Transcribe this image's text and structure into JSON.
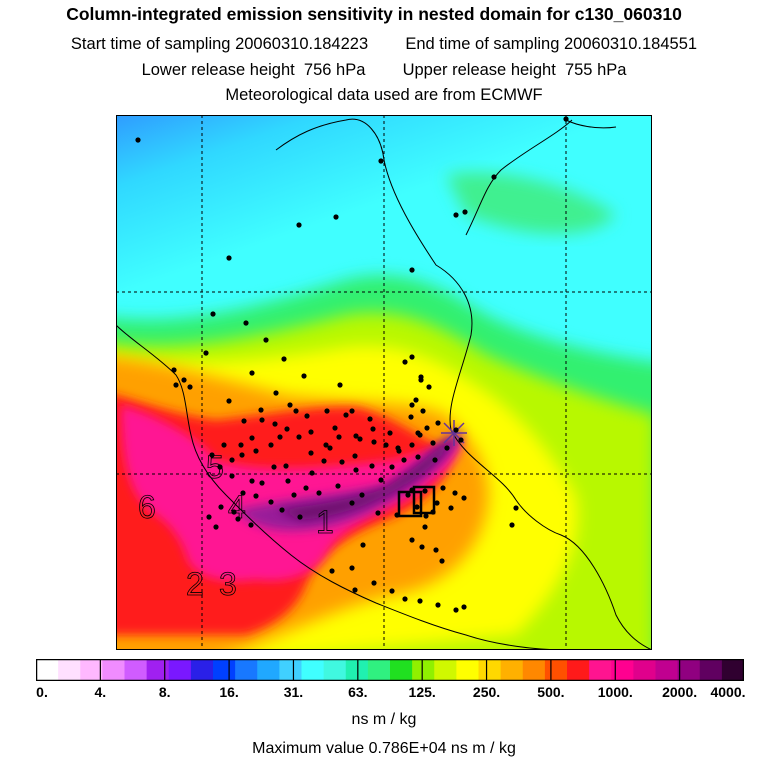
{
  "title": "Column-integrated emission sensitivity in nested domain for c130_060310",
  "sampling": {
    "start_label": "Start time of sampling",
    "start_value": "20060310.184223",
    "end_label": "End time of sampling",
    "end_value": "20060310.184551"
  },
  "release": {
    "lower_label": "Lower release height",
    "lower_value": "756 hPa",
    "upper_label": "Upper release height",
    "upper_value": "755 hPa"
  },
  "met_line": "Meteorological data used are from ECMWF",
  "map_labels": [
    "1",
    "2",
    "3",
    "4",
    "5",
    "6"
  ],
  "colorbar": {
    "tick_labels": [
      "0.",
      "4.",
      "8.",
      "16.",
      "31.",
      "63.",
      "125.",
      "250.",
      "500.",
      "1000.",
      "2000.",
      "4000."
    ],
    "colors": [
      "#ffffff",
      "#ffe0ff",
      "#ffb8ff",
      "#f08cff",
      "#d05cff",
      "#a020f0",
      "#7a18ff",
      "#2a20e8",
      "#0040ff",
      "#1878ff",
      "#20a8ff",
      "#40d0ff",
      "#40ffff",
      "#40f8e0",
      "#20f0b0",
      "#30f080",
      "#20e020",
      "#90f000",
      "#d0f800",
      "#ffff00",
      "#ffd800",
      "#ffb000",
      "#ff8800",
      "#ff5000",
      "#ff1a1a",
      "#ff1490",
      "#ff0090",
      "#e0008c",
      "#c00090",
      "#900080",
      "#600060",
      "#300030"
    ],
    "units": "ns m / kg"
  },
  "max_value_line": "Maximum value  0.786E+04 ns m / kg",
  "colors": {
    "cyan": "#40ffff",
    "green": "#30ff60",
    "yellow": "#ffff00",
    "orange": "#ff9900",
    "red": "#ff2020",
    "magenta": "#ff1493",
    "purple": "#8b008b",
    "blue": "#1e90ff"
  }
}
